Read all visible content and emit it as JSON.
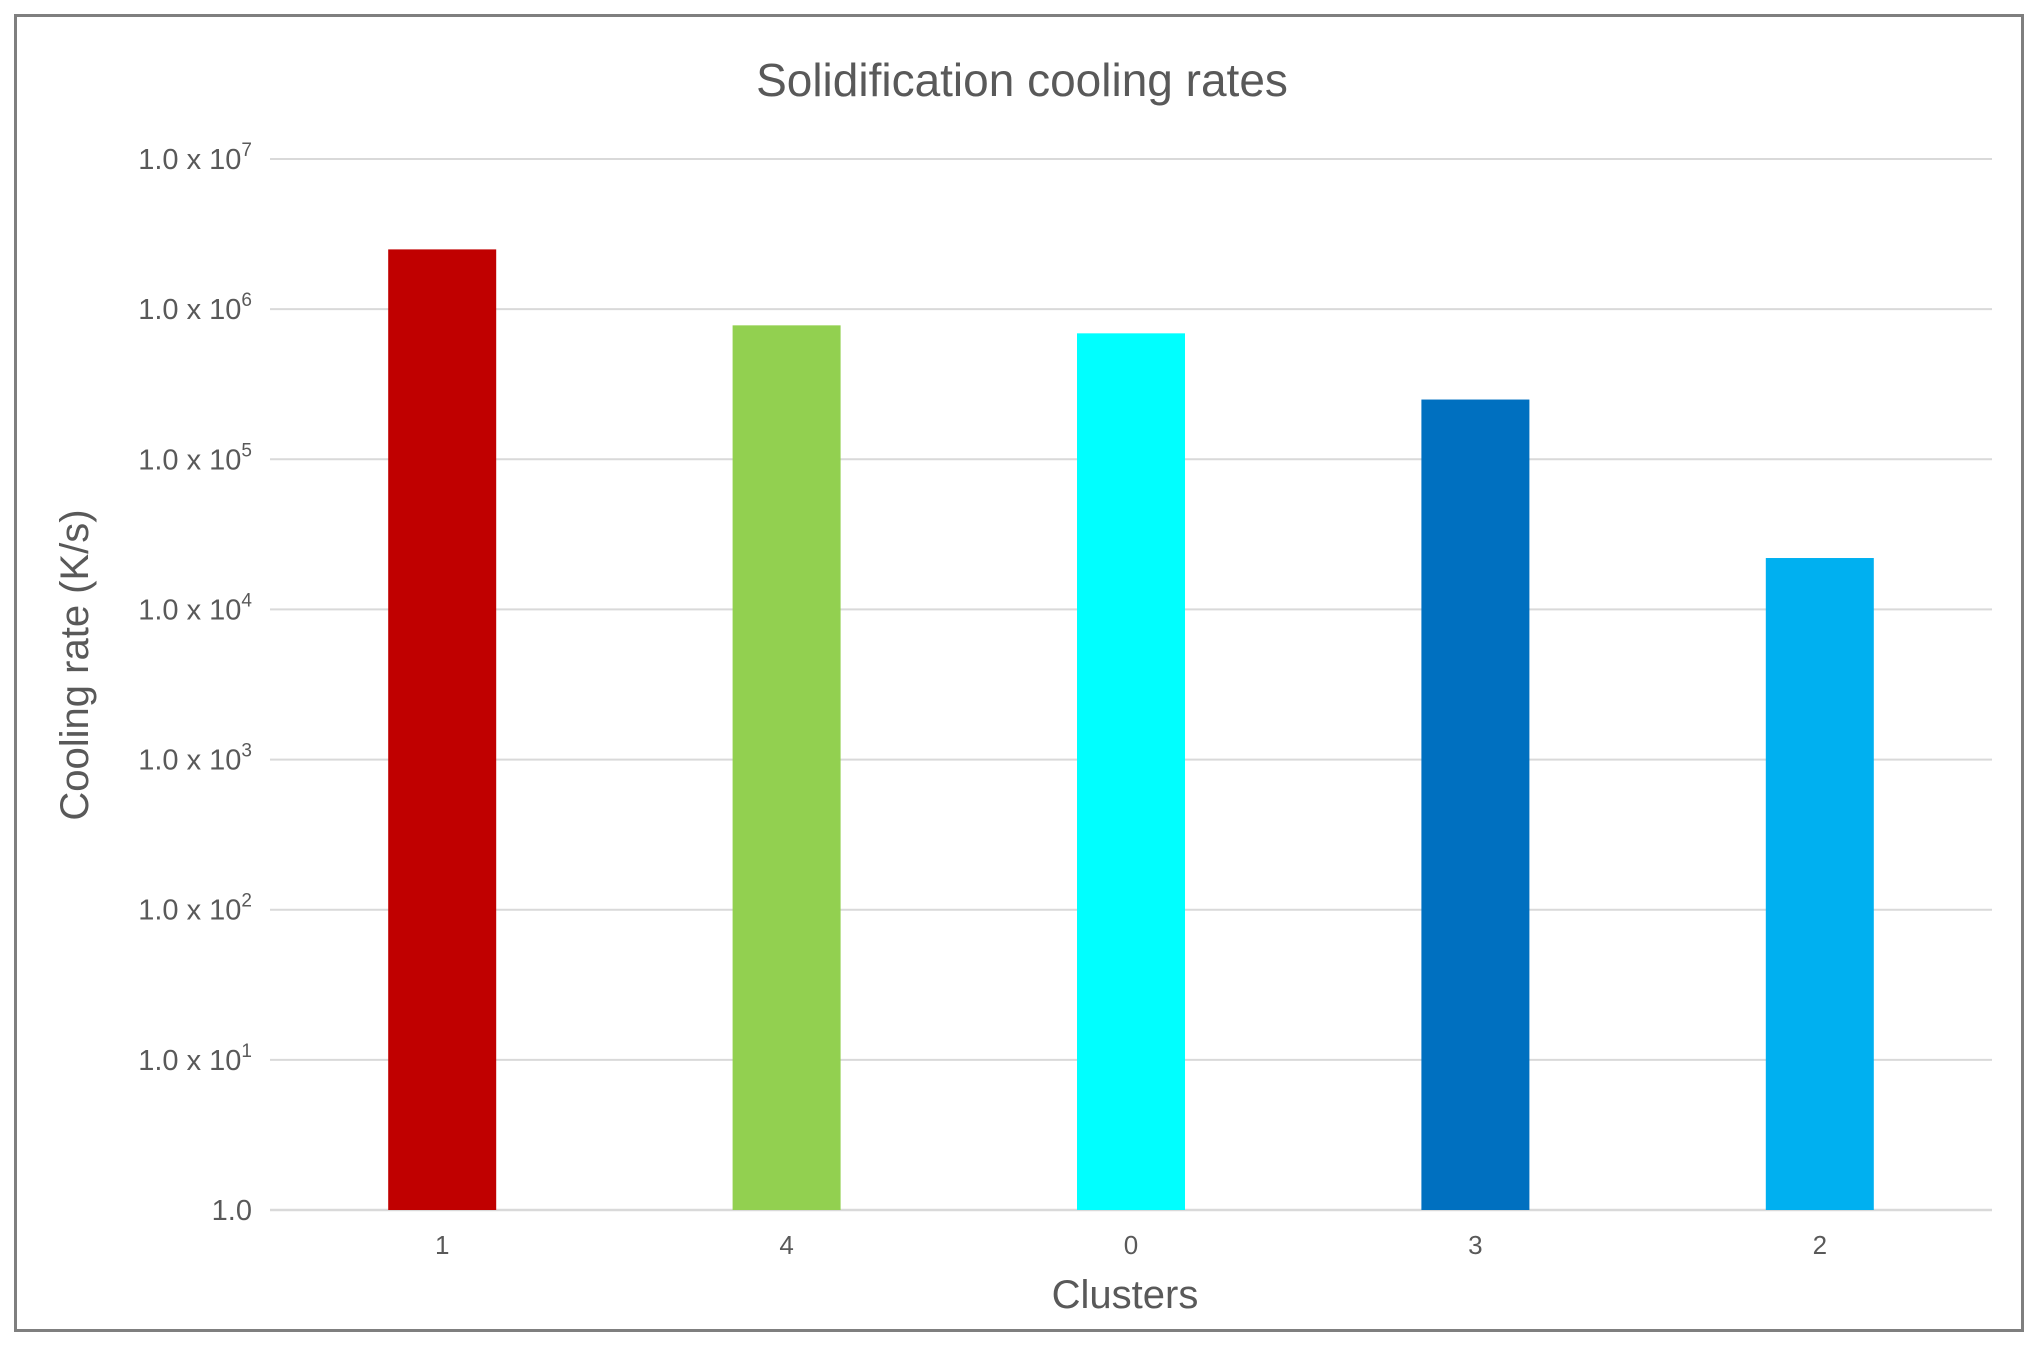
{
  "chart_data": {
    "type": "bar",
    "title": "Solidification cooling rates",
    "xlabel": "Clusters",
    "ylabel": "Cooling rate (K/s)",
    "yscale": "log",
    "ylim": [
      1,
      10000000
    ],
    "yticks": [
      {
        "value": 1,
        "mantissa": "1.0",
        "exponent": ""
      },
      {
        "value": 10,
        "mantissa": "1.0 x 10",
        "exponent": "1"
      },
      {
        "value": 100,
        "mantissa": "1.0 x 10",
        "exponent": "2"
      },
      {
        "value": 1000,
        "mantissa": "1.0 x 10",
        "exponent": "3"
      },
      {
        "value": 10000,
        "mantissa": "1.0 x 10",
        "exponent": "4"
      },
      {
        "value": 100000,
        "mantissa": "1.0 x 10",
        "exponent": "5"
      },
      {
        "value": 1000000,
        "mantissa": "1.0 x 10",
        "exponent": "6"
      },
      {
        "value": 10000000,
        "mantissa": "1.0 x 10",
        "exponent": "7"
      }
    ],
    "categories": [
      "1",
      "4",
      "0",
      "3",
      "2"
    ],
    "values": [
      2500000,
      780000,
      690000,
      250000,
      22000
    ],
    "colors": [
      "#c00000",
      "#92d050",
      "#00ffff",
      "#0070c0",
      "#00b0f0"
    ],
    "grid": true,
    "legend": "none"
  }
}
